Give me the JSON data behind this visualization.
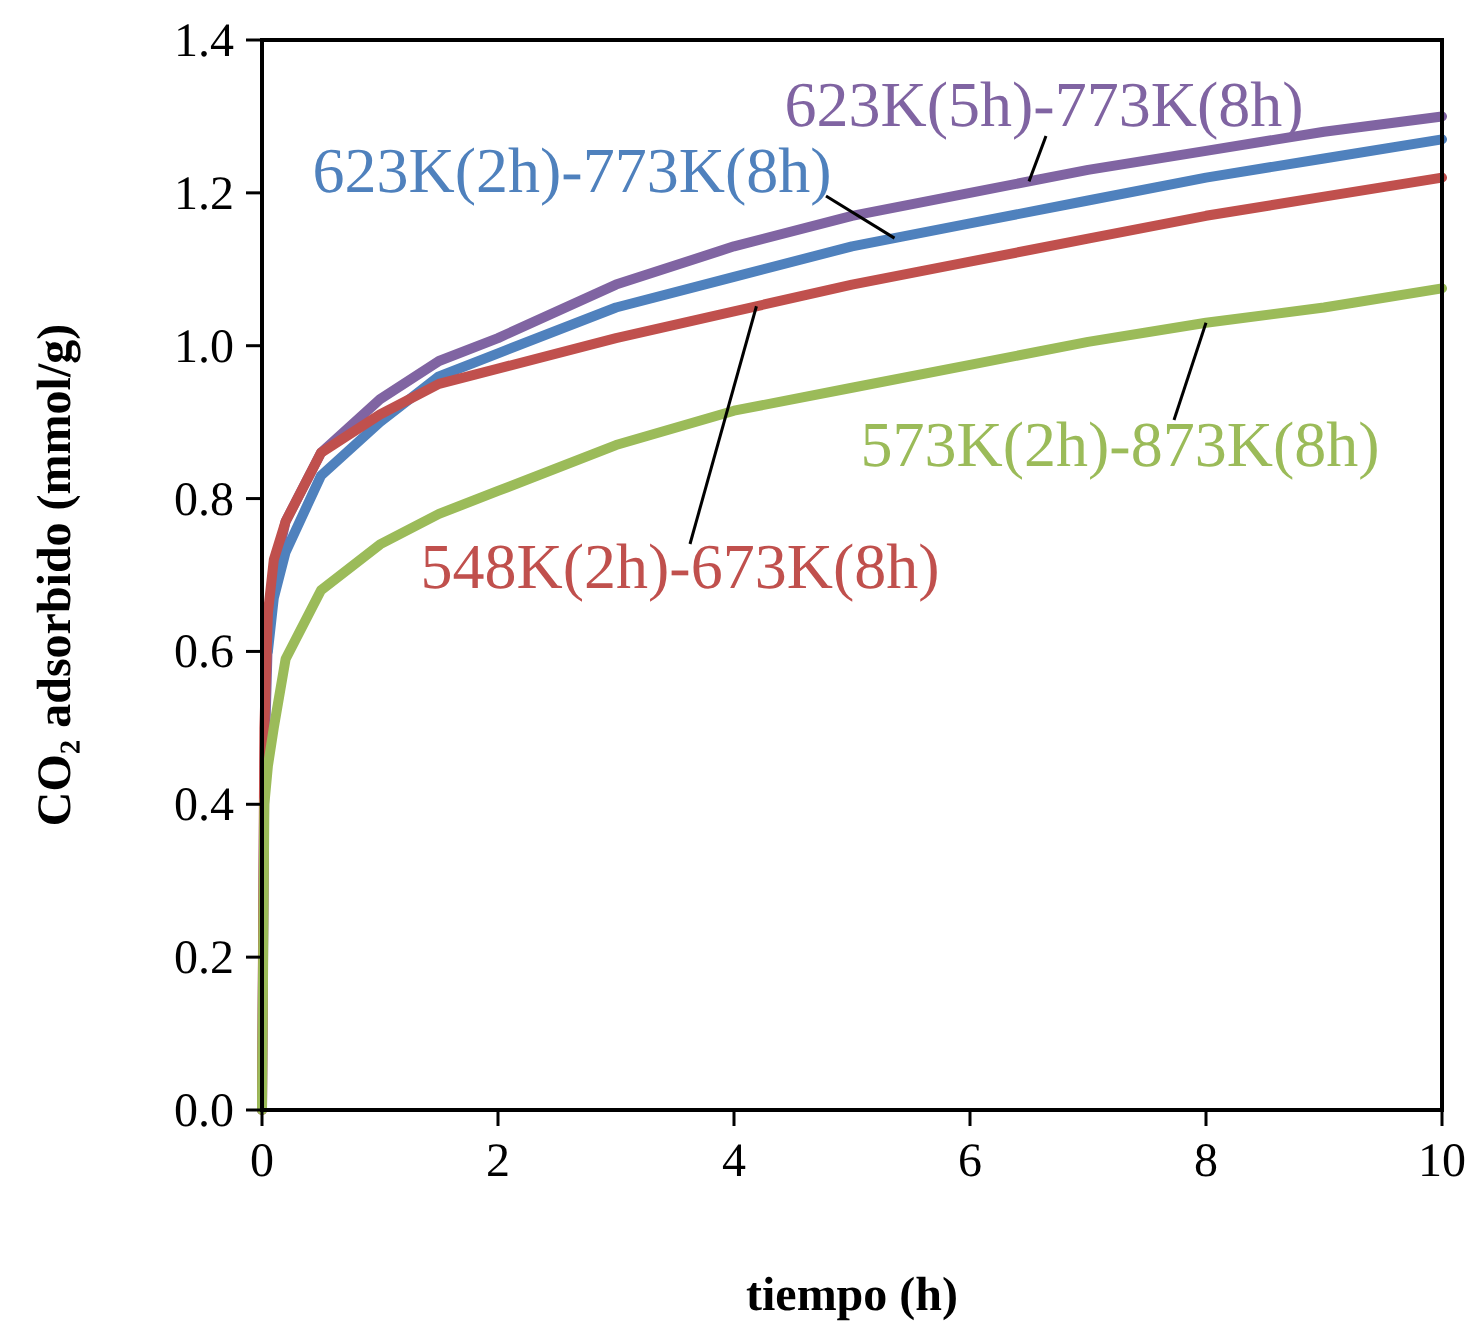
{
  "chart_data": {
    "type": "line",
    "xlabel": "tiempo (h)",
    "ylabel": "CO₂ adsorbido (mmol/g)",
    "x": [
      0,
      0.02,
      0.05,
      0.1,
      0.2,
      0.5,
      1,
      1.5,
      2,
      3,
      4,
      5,
      6,
      7,
      8,
      9,
      10
    ],
    "xlim": [
      0,
      10
    ],
    "xticks": [
      0,
      2,
      4,
      6,
      8,
      10
    ],
    "ylim": [
      0,
      1.4
    ],
    "yticks": [
      {
        "value": 0,
        "label": "0.0"
      },
      {
        "value": 0.2,
        "label": "0.2"
      },
      {
        "value": 0.4,
        "label": "0.4"
      },
      {
        "value": 0.6,
        "label": "0.6"
      },
      {
        "value": 0.8,
        "label": "0.8"
      },
      {
        "value": 1,
        "label": "1.0"
      },
      {
        "value": 1.2,
        "label": "1.2"
      },
      {
        "value": 1.4,
        "label": "1.4"
      }
    ],
    "grid": false,
    "legend": false,
    "series": [
      {
        "name": "623K(5h)-773K(8h)",
        "color": "#8064a2",
        "values": [
          0,
          0.45,
          0.62,
          0.7,
          0.77,
          0.86,
          0.93,
          0.98,
          1.01,
          1.08,
          1.13,
          1.17,
          1.2,
          1.23,
          1.255,
          1.28,
          1.3
        ]
      },
      {
        "name": "623K(2h)-773K(8h)",
        "color": "#4f81bd",
        "values": [
          null,
          null,
          0.6,
          0.67,
          0.73,
          0.83,
          0.9,
          0.96,
          0.99,
          1.05,
          1.09,
          1.13,
          1.16,
          1.19,
          1.22,
          1.245,
          1.27
        ]
      },
      {
        "name": "548K(2h)-673K(8h)",
        "color": "#c0504d",
        "values": [
          0,
          0.5,
          0.65,
          0.72,
          0.77,
          0.86,
          0.91,
          0.95,
          0.97,
          1.01,
          1.045,
          1.08,
          1.11,
          1.14,
          1.17,
          1.195,
          1.22
        ]
      },
      {
        "name": "573K(2h)-873K(8h)",
        "color": "#9bbb59",
        "values": [
          0,
          0.4,
          0.45,
          0.5,
          0.59,
          0.68,
          0.74,
          0.78,
          0.81,
          0.87,
          0.915,
          0.945,
          0.975,
          1.005,
          1.03,
          1.05,
          1.075
        ]
      }
    ]
  }
}
